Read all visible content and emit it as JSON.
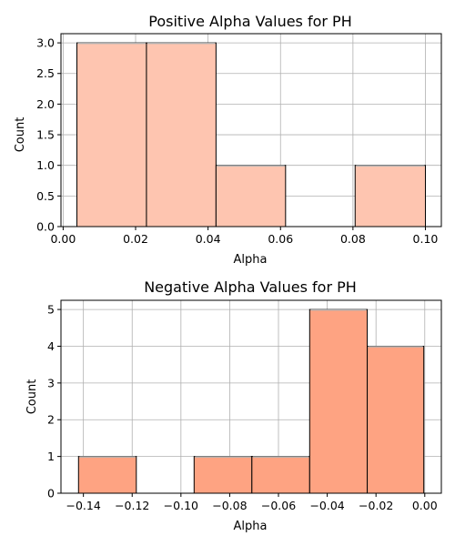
{
  "chart_data": [
    {
      "type": "bar",
      "title": "Positive Alpha Values for PH",
      "xlabel": "Alpha",
      "ylabel": "Count",
      "xlim": [
        -0.0006,
        0.1044
      ],
      "ylim": [
        0,
        3.15
      ],
      "xticks": [
        0.0,
        0.02,
        0.04,
        0.06,
        0.08,
        0.1
      ],
      "xtick_labels": [
        "0.00",
        "0.02",
        "0.04",
        "0.06",
        "0.08",
        "0.10"
      ],
      "yticks": [
        0.0,
        0.5,
        1.0,
        1.5,
        2.0,
        2.5,
        3.0
      ],
      "ytick_labels": [
        "0.0",
        "0.5",
        "1.0",
        "1.5",
        "2.0",
        "2.5",
        "3.0"
      ],
      "grid": true,
      "bar_color": "#fec5b0",
      "bin_edges": [
        0.0038,
        0.023,
        0.0422,
        0.0614,
        0.0806,
        0.1
      ],
      "values": [
        3,
        3,
        1,
        0,
        1
      ]
    },
    {
      "type": "bar",
      "title": "Negative Alpha Values for PH",
      "xlabel": "Alpha",
      "ylabel": "Count",
      "xlim": [
        -0.1492,
        0.0068
      ],
      "ylim": [
        0,
        5.25
      ],
      "xticks": [
        -0.14,
        -0.12,
        -0.1,
        -0.08,
        -0.06,
        -0.04,
        -0.02,
        0.0
      ],
      "xtick_labels": [
        "−0.14",
        "−0.12",
        "−0.10",
        "−0.08",
        "−0.06",
        "−0.04",
        "−0.02",
        "0.00"
      ],
      "yticks": [
        0,
        1,
        2,
        3,
        4,
        5
      ],
      "ytick_labels": [
        "0",
        "1",
        "2",
        "3",
        "4",
        "5"
      ],
      "grid": true,
      "bar_color": "#fea382",
      "bin_edges": [
        -0.142,
        -0.1183,
        -0.0946,
        -0.0709,
        -0.0472,
        -0.0236,
        -0.0004
      ],
      "values": [
        1,
        0,
        1,
        1,
        5,
        4
      ]
    }
  ]
}
